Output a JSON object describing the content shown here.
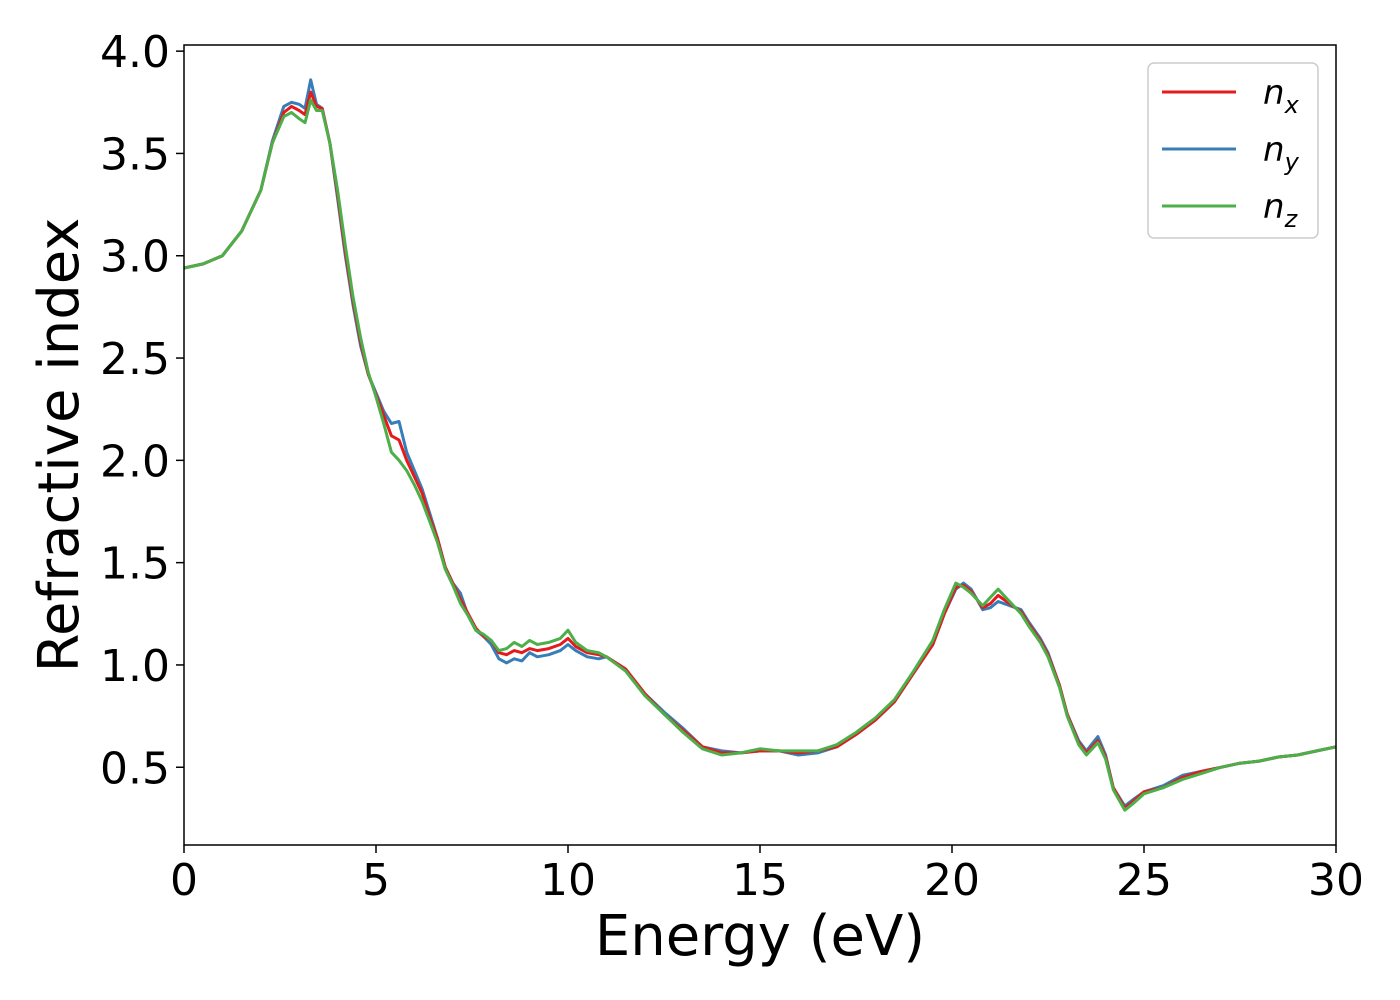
{
  "chart_data": {
    "type": "line",
    "title": "",
    "xlabel": "Energy (eV)",
    "ylabel": "Refractive index",
    "xlim": [
      0,
      30
    ],
    "ylim": [
      0.12,
      4.03
    ],
    "xticks": [
      0,
      5,
      10,
      15,
      20,
      25,
      30
    ],
    "yticks": [
      0.5,
      1.0,
      1.5,
      2.0,
      2.5,
      3.0,
      3.5,
      4.0
    ],
    "grid": false,
    "legend_position": "top-right",
    "series": [
      {
        "name": "n_x",
        "label_main": "n",
        "label_sub": "x",
        "color": "#e41a1c",
        "points": [
          [
            0,
            2.94
          ],
          [
            0.5,
            2.96
          ],
          [
            1,
            3.0
          ],
          [
            1.5,
            3.12
          ],
          [
            2,
            3.32
          ],
          [
            2.3,
            3.55
          ],
          [
            2.6,
            3.7
          ],
          [
            2.8,
            3.73
          ],
          [
            3.0,
            3.71
          ],
          [
            3.15,
            3.69
          ],
          [
            3.3,
            3.8
          ],
          [
            3.45,
            3.73
          ],
          [
            3.6,
            3.72
          ],
          [
            3.8,
            3.55
          ],
          [
            4.0,
            3.3
          ],
          [
            4.2,
            3.02
          ],
          [
            4.4,
            2.78
          ],
          [
            4.6,
            2.58
          ],
          [
            4.8,
            2.42
          ],
          [
            5.0,
            2.32
          ],
          [
            5.2,
            2.22
          ],
          [
            5.4,
            2.12
          ],
          [
            5.6,
            2.1
          ],
          [
            5.8,
            2.0
          ],
          [
            6.0,
            1.92
          ],
          [
            6.2,
            1.84
          ],
          [
            6.4,
            1.72
          ],
          [
            6.6,
            1.62
          ],
          [
            6.8,
            1.48
          ],
          [
            7.0,
            1.4
          ],
          [
            7.2,
            1.32
          ],
          [
            7.4,
            1.25
          ],
          [
            7.6,
            1.18
          ],
          [
            7.8,
            1.14
          ],
          [
            8.0,
            1.12
          ],
          [
            8.2,
            1.06
          ],
          [
            8.4,
            1.05
          ],
          [
            8.6,
            1.07
          ],
          [
            8.8,
            1.06
          ],
          [
            9.0,
            1.08
          ],
          [
            9.2,
            1.07
          ],
          [
            9.5,
            1.08
          ],
          [
            9.8,
            1.1
          ],
          [
            10.0,
            1.13
          ],
          [
            10.2,
            1.09
          ],
          [
            10.5,
            1.06
          ],
          [
            10.8,
            1.05
          ],
          [
            11.0,
            1.04
          ],
          [
            11.5,
            0.98
          ],
          [
            12.0,
            0.86
          ],
          [
            12.5,
            0.76
          ],
          [
            13.0,
            0.68
          ],
          [
            13.5,
            0.6
          ],
          [
            14.0,
            0.57
          ],
          [
            14.5,
            0.57
          ],
          [
            15.0,
            0.58
          ],
          [
            15.5,
            0.58
          ],
          [
            16.0,
            0.57
          ],
          [
            16.5,
            0.58
          ],
          [
            17.0,
            0.6
          ],
          [
            17.5,
            0.66
          ],
          [
            18.0,
            0.73
          ],
          [
            18.5,
            0.82
          ],
          [
            19.0,
            0.96
          ],
          [
            19.5,
            1.1
          ],
          [
            19.8,
            1.25
          ],
          [
            20.1,
            1.38
          ],
          [
            20.3,
            1.39
          ],
          [
            20.5,
            1.36
          ],
          [
            20.8,
            1.28
          ],
          [
            21.0,
            1.3
          ],
          [
            21.2,
            1.34
          ],
          [
            21.5,
            1.3
          ],
          [
            21.8,
            1.26
          ],
          [
            22.0,
            1.2
          ],
          [
            22.3,
            1.12
          ],
          [
            22.5,
            1.05
          ],
          [
            22.8,
            0.9
          ],
          [
            23.0,
            0.76
          ],
          [
            23.3,
            0.62
          ],
          [
            23.5,
            0.57
          ],
          [
            23.8,
            0.63
          ],
          [
            24.0,
            0.55
          ],
          [
            24.2,
            0.4
          ],
          [
            24.5,
            0.3
          ],
          [
            24.7,
            0.33
          ],
          [
            25.0,
            0.38
          ],
          [
            25.5,
            0.4
          ],
          [
            26.0,
            0.45
          ],
          [
            26.5,
            0.48
          ],
          [
            27.0,
            0.5
          ],
          [
            27.5,
            0.52
          ],
          [
            28.0,
            0.53
          ],
          [
            28.5,
            0.55
          ],
          [
            29.0,
            0.56
          ],
          [
            29.5,
            0.58
          ],
          [
            30.0,
            0.6
          ]
        ]
      },
      {
        "name": "n_y",
        "label_main": "n",
        "label_sub": "y",
        "color": "#377eb8",
        "points": [
          [
            0,
            2.94
          ],
          [
            0.5,
            2.96
          ],
          [
            1,
            3.0
          ],
          [
            1.5,
            3.12
          ],
          [
            2,
            3.32
          ],
          [
            2.3,
            3.56
          ],
          [
            2.6,
            3.73
          ],
          [
            2.8,
            3.75
          ],
          [
            3.0,
            3.74
          ],
          [
            3.15,
            3.72
          ],
          [
            3.3,
            3.86
          ],
          [
            3.45,
            3.74
          ],
          [
            3.6,
            3.72
          ],
          [
            3.8,
            3.55
          ],
          [
            4.0,
            3.28
          ],
          [
            4.2,
            3.0
          ],
          [
            4.4,
            2.76
          ],
          [
            4.6,
            2.56
          ],
          [
            4.8,
            2.42
          ],
          [
            5.0,
            2.33
          ],
          [
            5.2,
            2.24
          ],
          [
            5.4,
            2.18
          ],
          [
            5.6,
            2.19
          ],
          [
            5.8,
            2.04
          ],
          [
            6.0,
            1.95
          ],
          [
            6.2,
            1.86
          ],
          [
            6.4,
            1.74
          ],
          [
            6.6,
            1.62
          ],
          [
            6.8,
            1.48
          ],
          [
            7.0,
            1.4
          ],
          [
            7.2,
            1.35
          ],
          [
            7.4,
            1.24
          ],
          [
            7.6,
            1.17
          ],
          [
            7.8,
            1.14
          ],
          [
            8.0,
            1.1
          ],
          [
            8.2,
            1.03
          ],
          [
            8.4,
            1.01
          ],
          [
            8.6,
            1.03
          ],
          [
            8.8,
            1.02
          ],
          [
            9.0,
            1.06
          ],
          [
            9.2,
            1.04
          ],
          [
            9.5,
            1.05
          ],
          [
            9.8,
            1.07
          ],
          [
            10.0,
            1.1
          ],
          [
            10.2,
            1.07
          ],
          [
            10.5,
            1.04
          ],
          [
            10.8,
            1.03
          ],
          [
            11.0,
            1.04
          ],
          [
            11.5,
            0.98
          ],
          [
            12.0,
            0.86
          ],
          [
            12.5,
            0.77
          ],
          [
            13.0,
            0.69
          ],
          [
            13.5,
            0.6
          ],
          [
            14.0,
            0.58
          ],
          [
            14.5,
            0.57
          ],
          [
            15.0,
            0.58
          ],
          [
            15.5,
            0.58
          ],
          [
            16.0,
            0.56
          ],
          [
            16.5,
            0.57
          ],
          [
            17.0,
            0.6
          ],
          [
            17.5,
            0.66
          ],
          [
            18.0,
            0.73
          ],
          [
            18.5,
            0.82
          ],
          [
            19.0,
            0.96
          ],
          [
            19.5,
            1.1
          ],
          [
            19.8,
            1.25
          ],
          [
            20.1,
            1.37
          ],
          [
            20.3,
            1.4
          ],
          [
            20.5,
            1.37
          ],
          [
            20.8,
            1.27
          ],
          [
            21.0,
            1.28
          ],
          [
            21.2,
            1.31
          ],
          [
            21.5,
            1.29
          ],
          [
            21.8,
            1.27
          ],
          [
            22.0,
            1.21
          ],
          [
            22.3,
            1.13
          ],
          [
            22.5,
            1.06
          ],
          [
            22.8,
            0.9
          ],
          [
            23.0,
            0.76
          ],
          [
            23.3,
            0.63
          ],
          [
            23.5,
            0.58
          ],
          [
            23.8,
            0.65
          ],
          [
            24.0,
            0.56
          ],
          [
            24.2,
            0.4
          ],
          [
            24.5,
            0.31
          ],
          [
            24.7,
            0.34
          ],
          [
            25.0,
            0.38
          ],
          [
            25.5,
            0.41
          ],
          [
            26.0,
            0.46
          ],
          [
            26.5,
            0.48
          ],
          [
            27.0,
            0.5
          ],
          [
            27.5,
            0.52
          ],
          [
            28.0,
            0.53
          ],
          [
            28.5,
            0.55
          ],
          [
            29.0,
            0.56
          ],
          [
            29.5,
            0.58
          ],
          [
            30.0,
            0.6
          ]
        ]
      },
      {
        "name": "n_z",
        "label_main": "n",
        "label_sub": "z",
        "color": "#4daf4a",
        "points": [
          [
            0,
            2.94
          ],
          [
            0.5,
            2.96
          ],
          [
            1,
            3.0
          ],
          [
            1.5,
            3.12
          ],
          [
            2,
            3.32
          ],
          [
            2.3,
            3.55
          ],
          [
            2.6,
            3.68
          ],
          [
            2.8,
            3.7
          ],
          [
            3.0,
            3.67
          ],
          [
            3.15,
            3.65
          ],
          [
            3.3,
            3.76
          ],
          [
            3.45,
            3.71
          ],
          [
            3.6,
            3.71
          ],
          [
            3.8,
            3.55
          ],
          [
            4.0,
            3.32
          ],
          [
            4.2,
            3.05
          ],
          [
            4.4,
            2.8
          ],
          [
            4.6,
            2.6
          ],
          [
            4.8,
            2.43
          ],
          [
            5.0,
            2.31
          ],
          [
            5.2,
            2.18
          ],
          [
            5.4,
            2.04
          ],
          [
            5.6,
            2.0
          ],
          [
            5.8,
            1.95
          ],
          [
            6.0,
            1.88
          ],
          [
            6.2,
            1.8
          ],
          [
            6.4,
            1.7
          ],
          [
            6.6,
            1.6
          ],
          [
            6.8,
            1.47
          ],
          [
            7.0,
            1.39
          ],
          [
            7.2,
            1.3
          ],
          [
            7.4,
            1.24
          ],
          [
            7.6,
            1.17
          ],
          [
            7.8,
            1.15
          ],
          [
            8.0,
            1.12
          ],
          [
            8.2,
            1.07
          ],
          [
            8.4,
            1.08
          ],
          [
            8.6,
            1.11
          ],
          [
            8.8,
            1.09
          ],
          [
            9.0,
            1.12
          ],
          [
            9.2,
            1.1
          ],
          [
            9.5,
            1.11
          ],
          [
            9.8,
            1.13
          ],
          [
            10.0,
            1.17
          ],
          [
            10.2,
            1.11
          ],
          [
            10.5,
            1.07
          ],
          [
            10.8,
            1.06
          ],
          [
            11.0,
            1.04
          ],
          [
            11.5,
            0.97
          ],
          [
            12.0,
            0.85
          ],
          [
            12.5,
            0.76
          ],
          [
            13.0,
            0.67
          ],
          [
            13.5,
            0.59
          ],
          [
            14.0,
            0.56
          ],
          [
            14.5,
            0.57
          ],
          [
            15.0,
            0.59
          ],
          [
            15.5,
            0.58
          ],
          [
            16.0,
            0.58
          ],
          [
            16.5,
            0.58
          ],
          [
            17.0,
            0.61
          ],
          [
            17.5,
            0.67
          ],
          [
            18.0,
            0.74
          ],
          [
            18.5,
            0.83
          ],
          [
            19.0,
            0.97
          ],
          [
            19.5,
            1.12
          ],
          [
            19.8,
            1.27
          ],
          [
            20.1,
            1.4
          ],
          [
            20.3,
            1.38
          ],
          [
            20.5,
            1.35
          ],
          [
            20.8,
            1.29
          ],
          [
            21.0,
            1.33
          ],
          [
            21.2,
            1.37
          ],
          [
            21.5,
            1.31
          ],
          [
            21.8,
            1.25
          ],
          [
            22.0,
            1.19
          ],
          [
            22.3,
            1.11
          ],
          [
            22.5,
            1.04
          ],
          [
            22.8,
            0.89
          ],
          [
            23.0,
            0.75
          ],
          [
            23.3,
            0.61
          ],
          [
            23.5,
            0.56
          ],
          [
            23.8,
            0.62
          ],
          [
            24.0,
            0.54
          ],
          [
            24.2,
            0.39
          ],
          [
            24.5,
            0.29
          ],
          [
            24.7,
            0.32
          ],
          [
            25.0,
            0.37
          ],
          [
            25.5,
            0.4
          ],
          [
            26.0,
            0.44
          ],
          [
            26.5,
            0.47
          ],
          [
            27.0,
            0.5
          ],
          [
            27.5,
            0.52
          ],
          [
            28.0,
            0.53
          ],
          [
            28.5,
            0.55
          ],
          [
            29.0,
            0.56
          ],
          [
            29.5,
            0.58
          ],
          [
            30.0,
            0.6
          ]
        ]
      }
    ]
  }
}
